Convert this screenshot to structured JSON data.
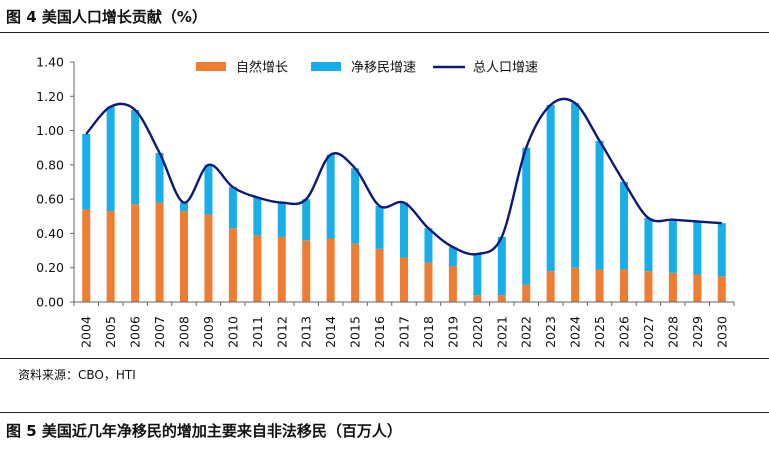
{
  "figure4_title": "图 4 美国人口增长贡献（%）",
  "source_note": "资料来源：CBO，HTI",
  "figure5_title": "图 5 美国近几年净移民的增加主要来自非法移民（百万人）",
  "colors": {
    "natural": "#ED7D31",
    "migration": "#19AEEA",
    "total": "#0B1A78"
  },
  "chart_data": {
    "type": "bar",
    "stacked": true,
    "title": "",
    "xlabel": "",
    "ylabel": "",
    "ylim": [
      0,
      1.4
    ],
    "yticks": [
      "0.00",
      "0.20",
      "0.40",
      "0.60",
      "0.80",
      "1.00",
      "1.20",
      "1.40"
    ],
    "grid": false,
    "legend_position": "top",
    "categories": [
      "2004",
      "2005",
      "2006",
      "2007",
      "2008",
      "2009",
      "2010",
      "2011",
      "2012",
      "2013",
      "2014",
      "2015",
      "2016",
      "2017",
      "2018",
      "2019",
      "2020",
      "2021",
      "2022",
      "2023",
      "2024",
      "2025",
      "2026",
      "2027",
      "2028",
      "2029",
      "2030"
    ],
    "series": [
      {
        "name": "自然增长",
        "kind": "bar",
        "values": [
          0.54,
          0.53,
          0.57,
          0.58,
          0.53,
          0.51,
          0.43,
          0.39,
          0.38,
          0.36,
          0.37,
          0.34,
          0.31,
          0.26,
          0.23,
          0.21,
          0.04,
          0.04,
          0.1,
          0.18,
          0.2,
          0.19,
          0.19,
          0.18,
          0.17,
          0.16,
          0.15
        ]
      },
      {
        "name": "净移民增速",
        "kind": "bar",
        "values": [
          0.44,
          0.61,
          0.55,
          0.29,
          0.05,
          0.29,
          0.24,
          0.22,
          0.2,
          0.24,
          0.49,
          0.44,
          0.25,
          0.32,
          0.2,
          0.11,
          0.24,
          0.34,
          0.8,
          0.97,
          0.96,
          0.75,
          0.51,
          0.31,
          0.31,
          0.31,
          0.31
        ]
      },
      {
        "name": "总人口增速",
        "kind": "line",
        "values": [
          0.98,
          1.14,
          1.12,
          0.87,
          0.58,
          0.8,
          0.67,
          0.61,
          0.58,
          0.6,
          0.86,
          0.78,
          0.56,
          0.58,
          0.43,
          0.32,
          0.28,
          0.38,
          0.9,
          1.15,
          1.16,
          0.94,
          0.7,
          0.49,
          0.48,
          0.47,
          0.46
        ]
      }
    ]
  }
}
